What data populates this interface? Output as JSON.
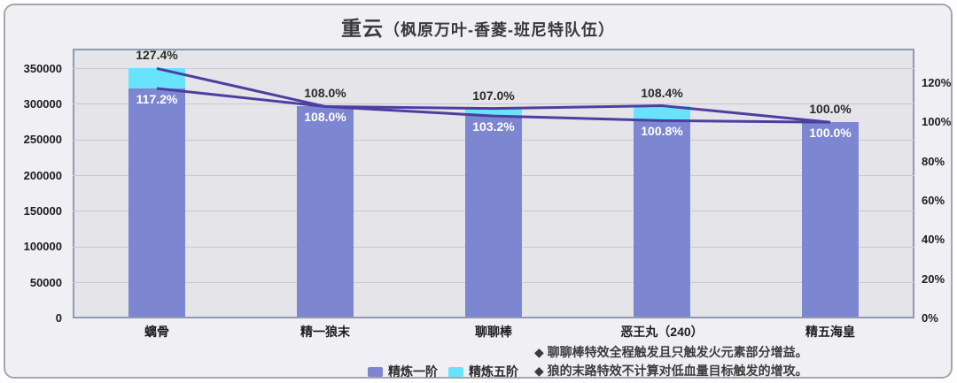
{
  "title": {
    "main": "重云",
    "sub": "（枫原万叶-香菱-班尼特队伍）"
  },
  "legend": {
    "items": [
      {
        "label": "精炼一阶",
        "color": "#7d86d0"
      },
      {
        "label": "精炼五阶",
        "color": "#68e3fb"
      }
    ]
  },
  "footnotes": [
    "◆ 聊聊棒特效全程触发且只触发火元素部分增益。",
    "◆ 狼的末路特效不计算对低血量目标触发的增攻。"
  ],
  "chart_data": {
    "type": "bar",
    "subtype": "stacked bars with two overlaid percentage lines, dual y-axes",
    "title": "重云（枫原万叶-香菱-班尼特队伍）",
    "categories": [
      "螭骨",
      "精一狼末",
      "聊聊棒",
      "恶王丸（240）",
      "精五海皇"
    ],
    "series": [
      {
        "name": "精炼一阶",
        "type": "bar",
        "stack": "base",
        "unit": "%",
        "values": [
          117.2,
          108.0,
          103.2,
          100.8,
          100.0
        ],
        "labels": [
          "117.2%",
          "108.0%",
          "103.2%",
          "100.8%",
          "100.0%"
        ],
        "est_dps_left_axis": [
          322000,
          297000,
          284000,
          277000,
          275000
        ],
        "color": "#7d86d0",
        "label_color": "#ffffff"
      },
      {
        "name": "精炼五阶",
        "type": "bar",
        "stack": "total-top",
        "unit": "%",
        "values": [
          127.4,
          108.0,
          107.0,
          108.4,
          100.0
        ],
        "labels": [
          "127.4%",
          "108.0%",
          "107.0%",
          "108.4%",
          "100.0%"
        ],
        "est_dps_left_axis": [
          350000,
          297000,
          294000,
          298000,
          275000
        ],
        "color": "#68e3fb",
        "label_color": "#2b2b2b"
      },
      {
        "name": "精炼五阶-折线",
        "type": "line",
        "axis": "right",
        "values": [
          127.4,
          108.0,
          107.0,
          108.4,
          100.0
        ],
        "color": "#4c3f9e"
      },
      {
        "name": "精炼一阶-折线",
        "type": "line",
        "axis": "right",
        "values": [
          117.2,
          108.0,
          103.2,
          100.8,
          100.0
        ],
        "color": "#4c3f9e"
      }
    ],
    "left_axis": {
      "tick_values": [
        0,
        50000,
        100000,
        150000,
        200000,
        250000,
        300000,
        350000
      ],
      "tick_labels": [
        "0",
        "50000",
        "100000",
        "150000",
        "200000",
        "250000",
        "300000",
        "350000"
      ],
      "max": 378000
    },
    "right_axis": {
      "tick_values": [
        0,
        20,
        40,
        60,
        80,
        100,
        120
      ],
      "tick_labels": [
        "0%",
        "20%",
        "40%",
        "60%",
        "80%",
        "100%",
        "120%"
      ],
      "max": 137.5
    },
    "grid": true,
    "legend_position": "bottom",
    "colors": {
      "card_bg": "#f0eff4",
      "card_border": "#a6a6ad",
      "plot_bg": "#e4e4e9",
      "plot_border": "#9198b2",
      "gridline": "#c9c9d2",
      "line": "#4c3f9e"
    }
  }
}
